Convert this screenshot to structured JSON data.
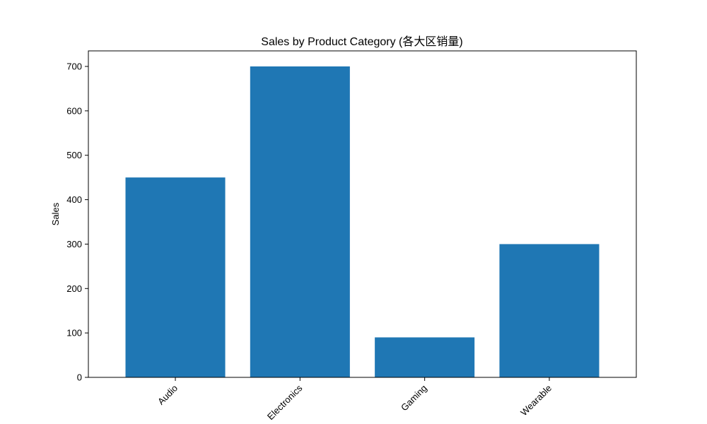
{
  "chart_data": {
    "type": "bar",
    "title": "Sales by Product Category (各大区销量)",
    "xlabel": "",
    "ylabel": "Sales",
    "categories": [
      "Audio",
      "Electronics",
      "Gaming",
      "Wearable"
    ],
    "values": [
      450,
      700,
      90,
      300
    ],
    "ylim": [
      0,
      735
    ],
    "yticks": [
      0,
      100,
      200,
      300,
      400,
      500,
      600,
      700
    ],
    "grid": false,
    "legend": "none",
    "bar_color": "#1f77b4"
  }
}
